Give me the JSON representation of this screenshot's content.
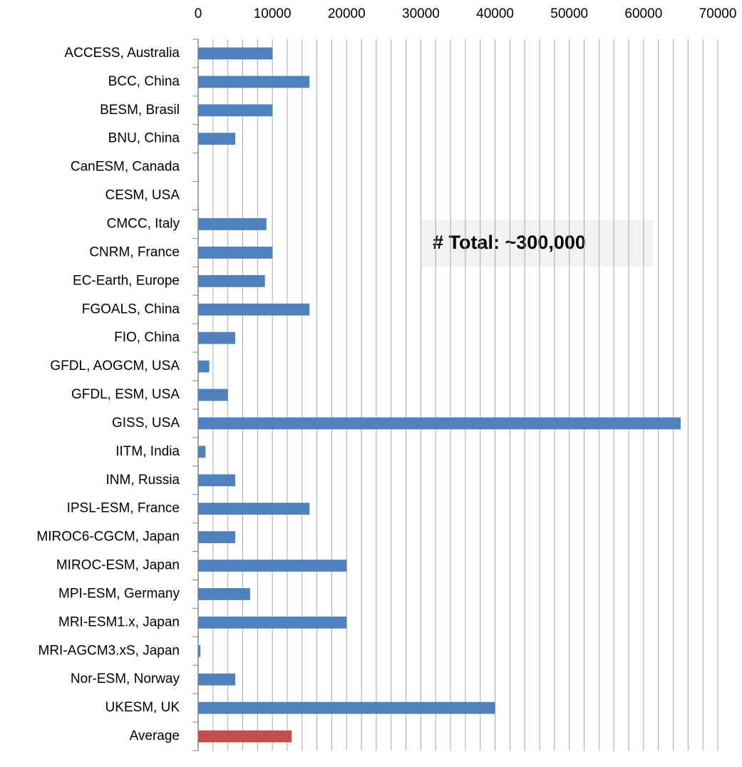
{
  "chart_data": {
    "type": "barh",
    "categories": [
      "ACCESS, Australia",
      "BCC, China",
      "BESM, Brasil",
      "BNU, China",
      "CanESM, Canada",
      "CESM, USA",
      "CMCC, Italy",
      "CNRM, France",
      "EC-Earth, Europe",
      "FGOALS, China",
      "FIO, China",
      "GFDL, AOGCM, USA",
      "GFDL, ESM, USA",
      "GISS, USA",
      "IITM, India",
      "INM, Russia",
      "IPSL-ESM, France",
      "MIROC6-CGCM, Japan",
      "MIROC-ESM, Japan",
      "MPI-ESM, Germany",
      "MRI-ESM1.x, Japan",
      "MRI-AGCM3.xS, Japan",
      "Nor-ESM, Norway",
      "UKESM, UK",
      "Average"
    ],
    "values": [
      10000,
      15000,
      10000,
      5000,
      null,
      null,
      9200,
      10000,
      9000,
      15000,
      5000,
      1500,
      4000,
      65000,
      1000,
      5000,
      15000,
      5000,
      20000,
      7000,
      20000,
      300,
      5000,
      40000,
      12600
    ],
    "colors": [
      "#4f81bd",
      "#4f81bd",
      "#4f81bd",
      "#4f81bd",
      "#4f81bd",
      "#4f81bd",
      "#4f81bd",
      "#4f81bd",
      "#4f81bd",
      "#4f81bd",
      "#4f81bd",
      "#4f81bd",
      "#4f81bd",
      "#4f81bd",
      "#4f81bd",
      "#4f81bd",
      "#4f81bd",
      "#4f81bd",
      "#4f81bd",
      "#4f81bd",
      "#4f81bd",
      "#4f81bd",
      "#4f81bd",
      "#4f81bd",
      "#c0504d"
    ],
    "xlim": [
      0,
      70000
    ],
    "xticks": [
      0,
      10000,
      20000,
      30000,
      40000,
      50000,
      60000,
      70000
    ],
    "xgrid": [
      2000,
      4000,
      6000,
      8000,
      10000,
      12000,
      14000,
      16000,
      18000,
      20000,
      22000,
      24000,
      26000,
      28000,
      30000,
      32000,
      34000,
      36000,
      38000,
      40000,
      42000,
      44000,
      46000,
      48000,
      50000,
      52000,
      54000,
      56000,
      58000,
      60000,
      62000,
      64000,
      66000,
      68000,
      70000
    ],
    "grid": true,
    "annotation": "# Total: ~300,000"
  }
}
